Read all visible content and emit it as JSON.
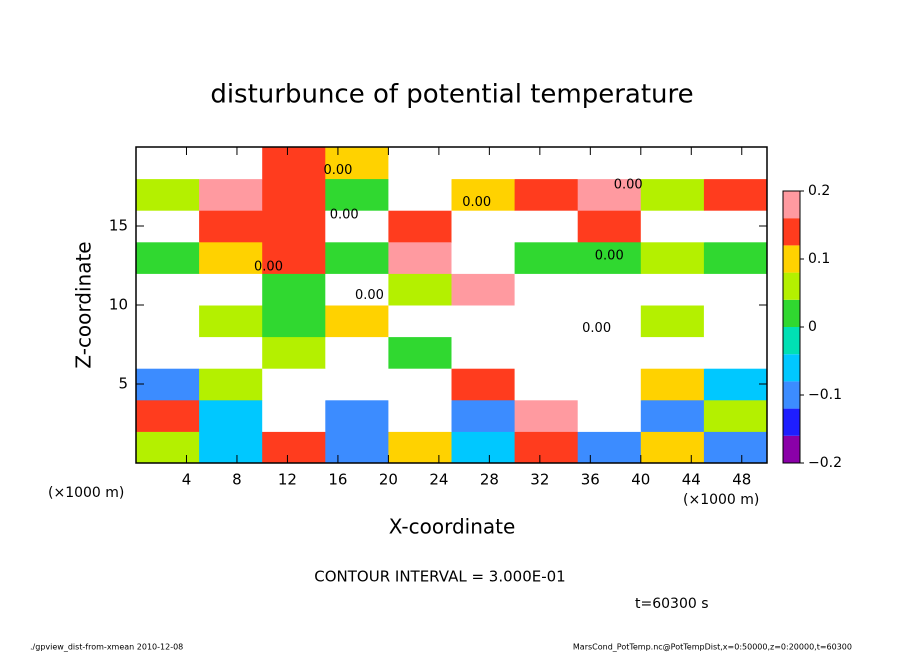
{
  "chart_data": {
    "type": "heatmap",
    "title": "disturbunce of potential temperature",
    "x_label": "X-coordinate",
    "y_label": "Z-coordinate",
    "x_unit_left": "(×1000 m)",
    "x_unit_right": "(×1000 m)",
    "xlim": [
      0,
      50
    ],
    "ylim": [
      0,
      20
    ],
    "xticks": [
      4,
      8,
      12,
      16,
      20,
      24,
      28,
      32,
      36,
      40,
      44,
      48
    ],
    "yticks": [
      5,
      10,
      15
    ],
    "xbins": [
      0,
      5,
      10,
      15,
      20,
      25,
      30,
      35,
      40,
      45,
      50
    ],
    "ybins": [
      0,
      2,
      4,
      6,
      8,
      10,
      12,
      14,
      16,
      18,
      20
    ],
    "values": [
      [
        0.05,
        -0.08,
        0.15,
        -0.1,
        0.1,
        -0.05,
        0.12,
        -0.1,
        0.08,
        -0.12
      ],
      [
        0.12,
        -0.05,
        0.25,
        -0.1,
        0.25,
        -0.12,
        0.18,
        0.25,
        -0.1,
        0.05
      ],
      [
        -0.1,
        0.05,
        0.25,
        0.25,
        0.25,
        0.15,
        0.25,
        0.25,
        0.1,
        -0.05
      ],
      [
        0.25,
        0.25,
        0.05,
        0.25,
        0.02,
        0.25,
        0.25,
        0.25,
        0.25,
        0.25
      ],
      [
        0.25,
        0.05,
        0.02,
        0.1,
        0.25,
        0.25,
        0.25,
        0.25,
        0.05,
        0.25
      ],
      [
        0.25,
        0.25,
        0.02,
        0.25,
        0.05,
        0.18,
        0.25,
        0.25,
        0.25,
        0.25
      ],
      [
        0.03,
        0.08,
        0.15,
        0.03,
        0.18,
        0.25,
        0.03,
        0.03,
        0.05,
        0.03
      ],
      [
        0.25,
        0.12,
        0.15,
        0.25,
        0.12,
        0.25,
        0.25,
        0.12,
        0.25,
        0.25
      ],
      [
        0.05,
        0.18,
        0.12,
        0.03,
        0.25,
        0.1,
        0.15,
        0.18,
        0.05,
        0.12
      ],
      [
        0.25,
        0.25,
        0.12,
        0.1,
        0.25,
        0.25,
        0.25,
        0.25,
        0.25,
        0.25
      ]
    ],
    "levels": [
      -0.2,
      -0.16,
      -0.12,
      -0.08,
      -0.04,
      0,
      0.04,
      0.08,
      0.12,
      0.16,
      0.2
    ],
    "colors": [
      "#8a00a8",
      "#1e1eff",
      "#3c8cff",
      "#00c8ff",
      "#00e0b4",
      "#30d830",
      "#b4f000",
      "#ffd200",
      "#ff3c1e",
      "#ff9aa0"
    ],
    "above_color": "#ffffff",
    "colorbar_ticks": [
      {
        "value": -0.2,
        "label": "−0.2"
      },
      {
        "value": -0.1,
        "label": "−0.1"
      },
      0,
      0.1,
      0.2
    ],
    "contour_labels": [
      {
        "x": 16,
        "y": 18.5,
        "label": "0.00"
      },
      {
        "x": 39,
        "y": 17.6,
        "label": "0.00"
      },
      {
        "x": 27,
        "y": 16.5,
        "label": "0.00"
      },
      {
        "x": 16.5,
        "y": 15.7,
        "label": "0.00"
      },
      {
        "x": 10.5,
        "y": 12.4,
        "label": "0.00"
      },
      {
        "x": 37.5,
        "y": 13.1,
        "label": "0.00"
      },
      {
        "x": 18.5,
        "y": 10.6,
        "label": "0.00"
      },
      {
        "x": 36.5,
        "y": 8.5,
        "label": "0.00"
      }
    ],
    "contour_interval": "CONTOUR INTERVAL = 3.000E-01",
    "time_label": "t=60300 s",
    "footer_left": "./gpview_dist-from-xmean  2010-12-08",
    "footer_right": "MarsCond_PotTemp.nc@PotTempDist,x=0:50000,z=0:20000,t=60300"
  }
}
